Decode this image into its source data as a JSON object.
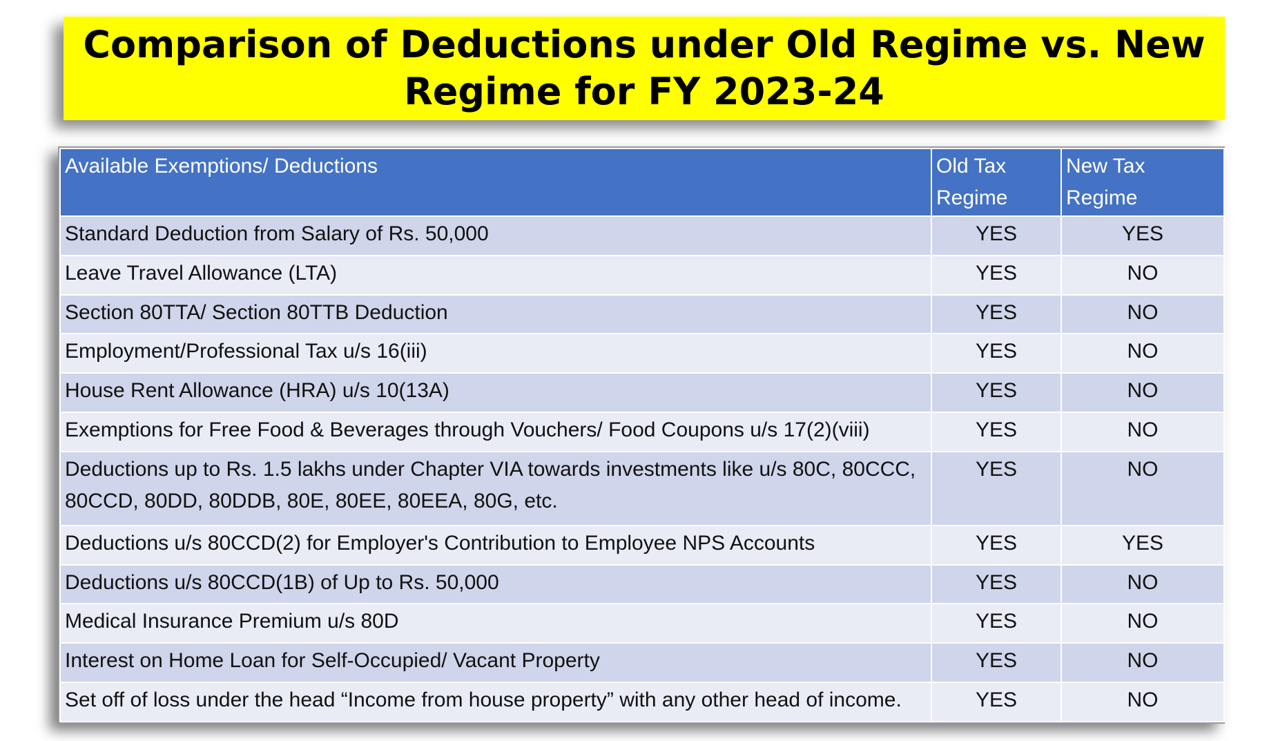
{
  "title": "Comparison of Deductions under Old Regime vs. New Regime for FY 2023-24",
  "table": {
    "headers": [
      "Available Exemptions/ Deductions",
      "Old Tax Regime",
      "New Tax Regime"
    ],
    "rows": [
      [
        "Standard Deduction from Salary of Rs. 50,000",
        "YES",
        "YES"
      ],
      [
        "Leave Travel Allowance (LTA)",
        "YES",
        "NO"
      ],
      [
        "Section 80TTA/ Section 80TTB Deduction",
        "YES",
        "NO"
      ],
      [
        "Employment/Professional Tax u/s 16(iii)",
        "YES",
        "NO"
      ],
      [
        "House Rent Allowance (HRA) u/s 10(13A)",
        "YES",
        "NO"
      ],
      [
        "Exemptions for Free Food & Beverages through Vouchers/ Food Coupons u/s 17(2)(viii)",
        "YES",
        "NO"
      ],
      [
        "Deductions up to Rs. 1.5 lakhs under Chapter VIA towards investments like u/s 80C, 80CCC, 80CCD, 80DD, 80DDB, 80E, 80EE, 80EEA, 80G, etc.",
        "YES",
        "NO"
      ],
      [
        "Deductions u/s 80CCD(2) for Employer's Contribution to Employee NPS Accounts",
        "YES",
        "YES"
      ],
      [
        "Deductions u/s 80CCD(1B) of Up to Rs. 50,000",
        "YES",
        "NO"
      ],
      [
        "Medical Insurance Premium u/s 80D",
        "YES",
        "NO"
      ],
      [
        "Interest on Home Loan for Self-Occupied/ Vacant Property",
        "YES",
        "NO"
      ],
      [
        "Set off of loss under the head “Income from house property” with any other head of income.",
        "YES",
        "NO"
      ]
    ]
  },
  "colors": {
    "title_bg": "#ffff00",
    "header_bg": "#4472c4",
    "row_odd_bg": "#cfd5ea",
    "row_even_bg": "#e9ebf5"
  }
}
